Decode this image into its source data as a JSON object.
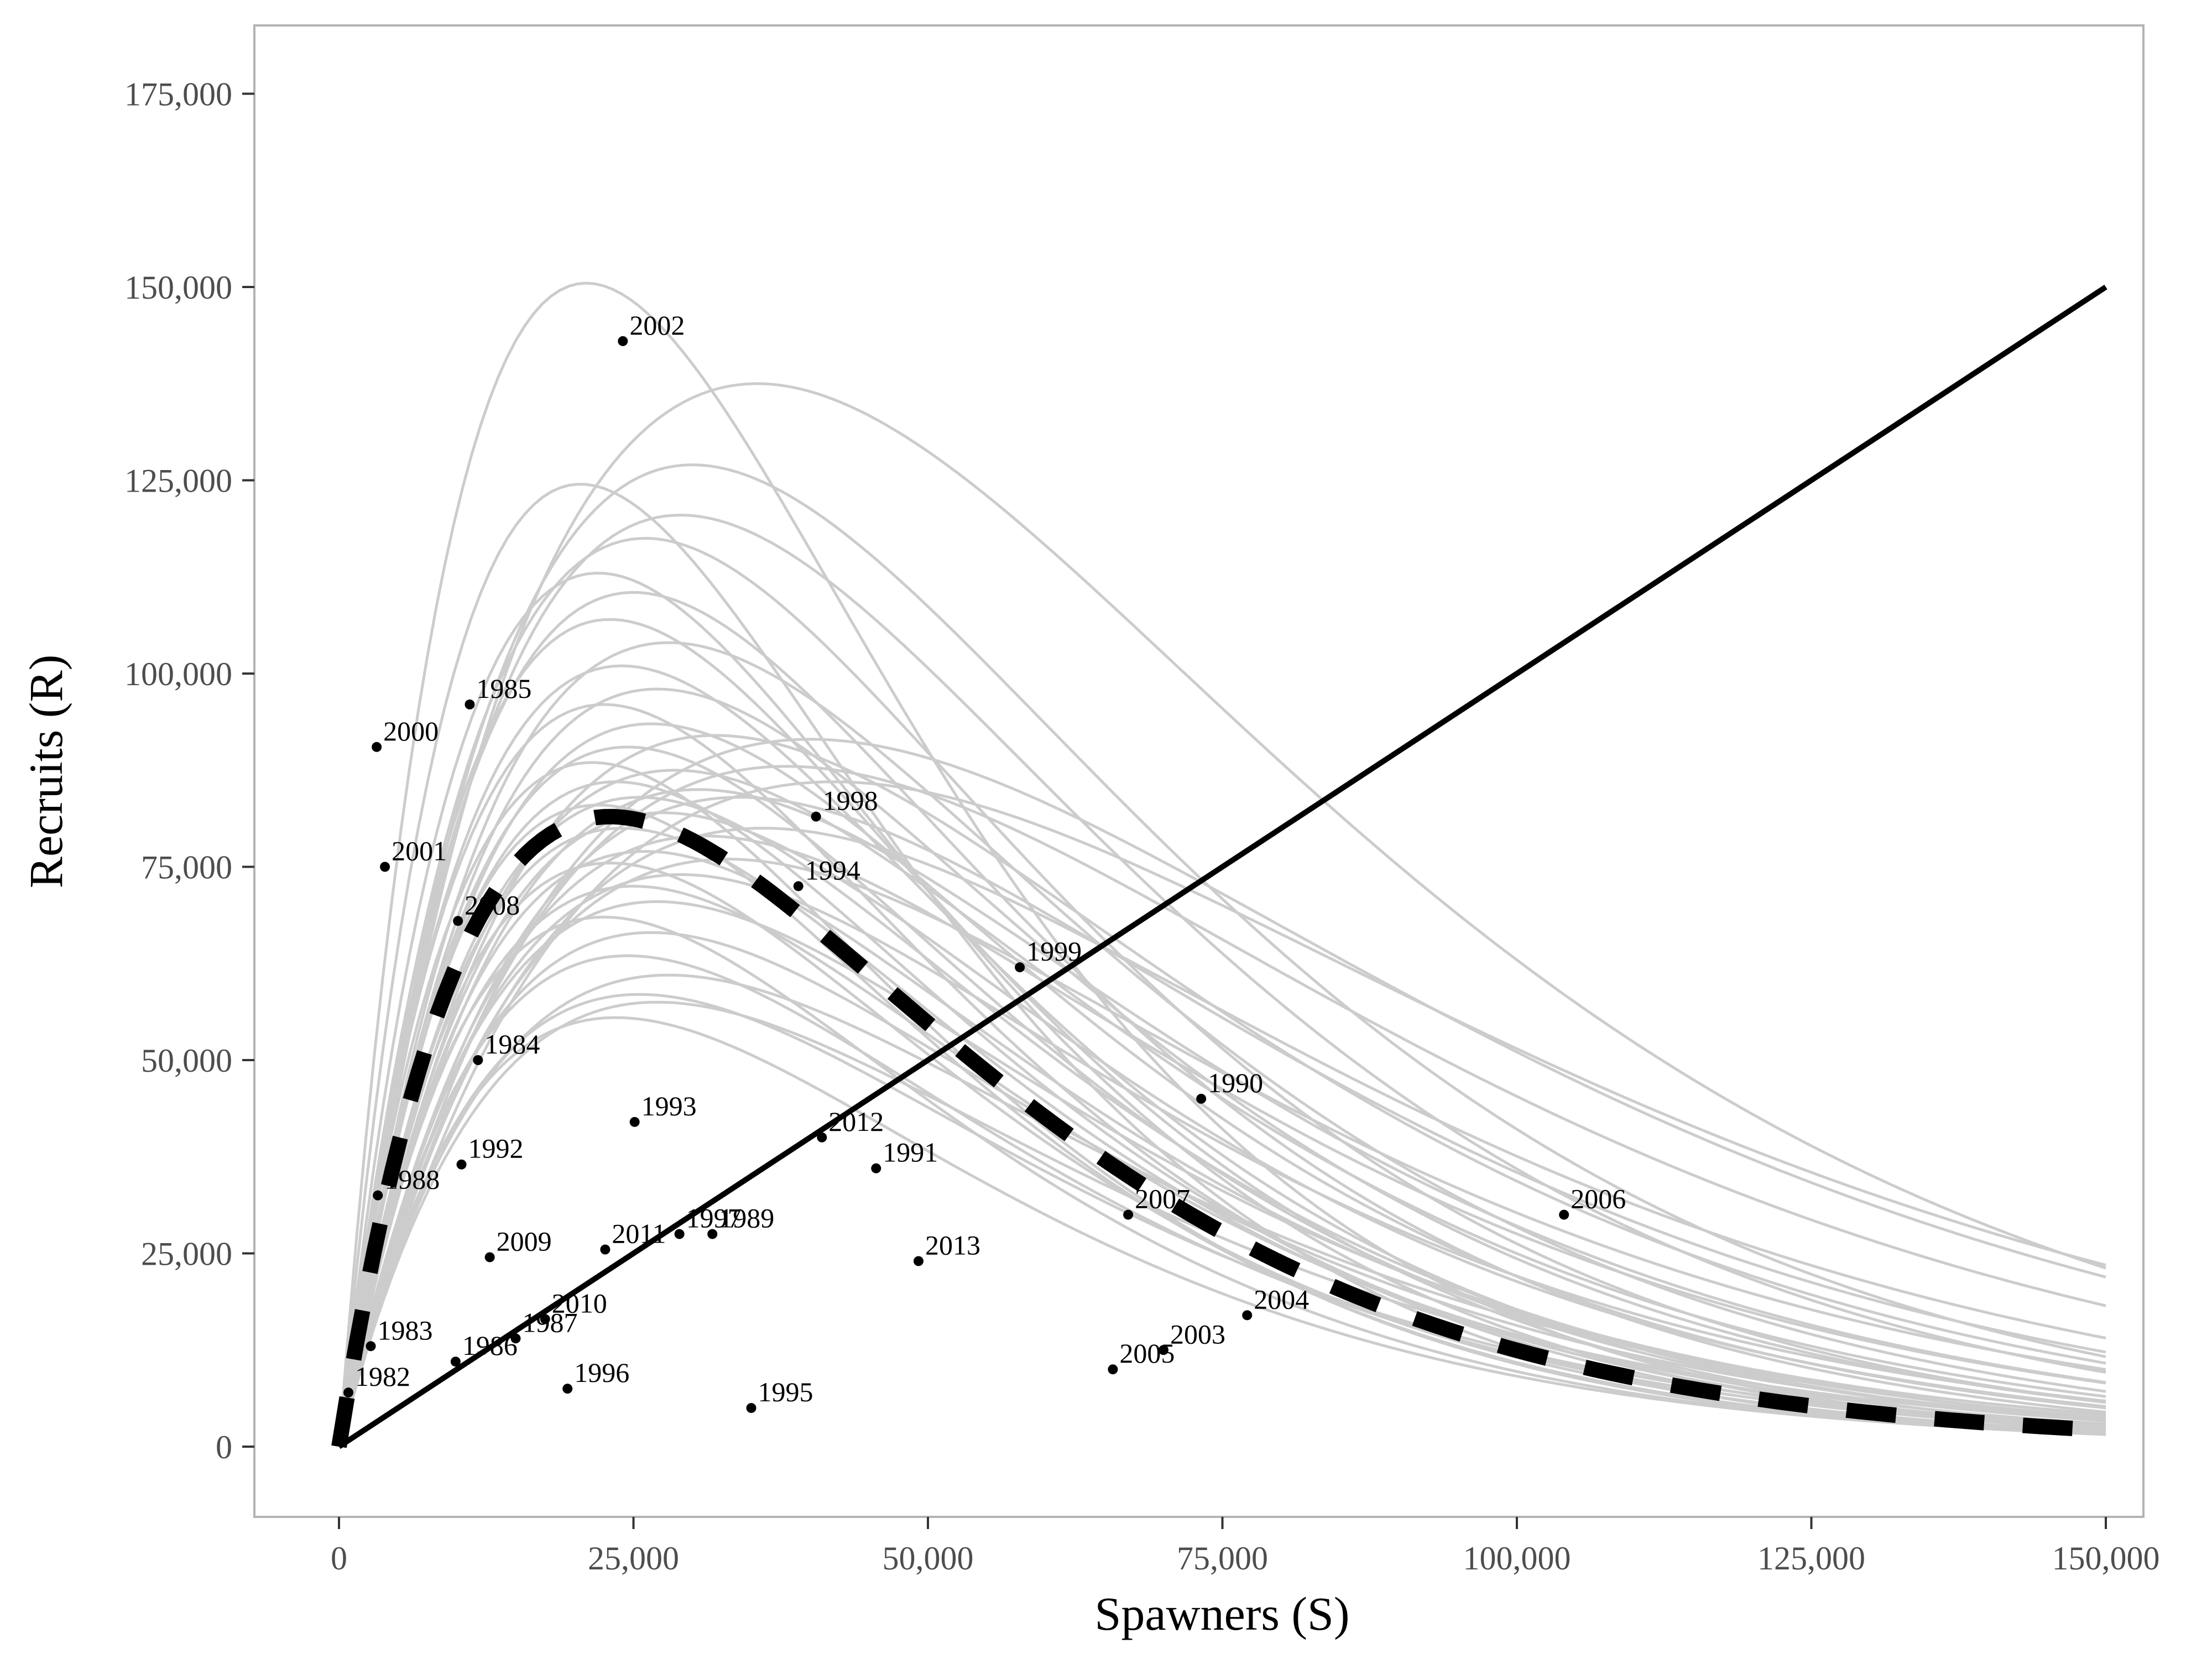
{
  "chart_data": {
    "type": "scatter",
    "xlabel": "Spawners (S)",
    "ylabel": "Recruits (R)",
    "xlim": [
      -7000,
      150000
    ],
    "ylim": [
      -8000,
      183000
    ],
    "x_ticks": [
      0,
      25000,
      50000,
      75000,
      100000,
      125000,
      150000
    ],
    "x_tick_labels": [
      "0",
      "25,000",
      "50,000",
      "75,000",
      "100,000",
      "125,000",
      "150,000"
    ],
    "y_ticks": [
      0,
      25000,
      50000,
      75000,
      100000,
      125000,
      150000,
      175000
    ],
    "y_tick_labels": [
      "0",
      "25,000",
      "50,000",
      "75,000",
      "100,000",
      "125,000",
      "150,000",
      "175,000"
    ],
    "grid": false,
    "replacement_line": {
      "x": [
        0,
        150000
      ],
      "y": [
        0,
        150000
      ]
    },
    "median_curve": {
      "model": "ricker",
      "peak_s": 23000,
      "peak_r": 81500
    },
    "posterior_curves": [
      [
        21000,
        150500
      ],
      [
        35500,
        137500
      ],
      [
        30000,
        127000
      ],
      [
        20500,
        124500
      ],
      [
        29000,
        120500
      ],
      [
        26000,
        117500
      ],
      [
        22000,
        113000
      ],
      [
        25000,
        110500
      ],
      [
        23000,
        107000
      ],
      [
        28000,
        104000
      ],
      [
        24000,
        101000
      ],
      [
        27000,
        98000
      ],
      [
        22500,
        96000
      ],
      [
        26500,
        93500
      ],
      [
        32000,
        92000
      ],
      [
        24500,
        90500
      ],
      [
        21500,
        88500
      ],
      [
        28500,
        87500
      ],
      [
        23500,
        86000
      ],
      [
        30500,
        85000
      ],
      [
        25500,
        84000
      ],
      [
        22000,
        83000
      ],
      [
        27500,
        82000
      ],
      [
        24000,
        80000
      ],
      [
        31000,
        79000
      ],
      [
        26000,
        77000
      ],
      [
        23000,
        75500
      ],
      [
        29000,
        74000
      ],
      [
        25000,
        72500
      ],
      [
        27000,
        70500
      ],
      [
        22500,
        68500
      ],
      [
        26500,
        66500
      ],
      [
        24500,
        63500
      ],
      [
        28000,
        61000
      ],
      [
        25500,
        58500
      ],
      [
        27000,
        57500
      ],
      [
        23500,
        55500
      ],
      [
        40000,
        91500
      ],
      [
        38000,
        88000
      ],
      [
        34000,
        84000
      ],
      [
        42000,
        86000
      ],
      [
        36000,
        80000
      ],
      [
        33000,
        76000
      ]
    ],
    "points": [
      {
        "year": "1982",
        "s": 800,
        "r": 7000
      },
      {
        "year": "1983",
        "s": 2700,
        "r": 13000
      },
      {
        "year": "1984",
        "s": 11800,
        "r": 50000
      },
      {
        "year": "1985",
        "s": 11100,
        "r": 96000
      },
      {
        "year": "1986",
        "s": 9900,
        "r": 11000
      },
      {
        "year": "1987",
        "s": 15000,
        "r": 14000
      },
      {
        "year": "1988",
        "s": 3300,
        "r": 32500
      },
      {
        "year": "1989",
        "s": 31700,
        "r": 27500
      },
      {
        "year": "1990",
        "s": 73200,
        "r": 45000
      },
      {
        "year": "1991",
        "s": 45600,
        "r": 36000
      },
      {
        "year": "1992",
        "s": 10400,
        "r": 36500
      },
      {
        "year": "1993",
        "s": 25100,
        "r": 42000
      },
      {
        "year": "1994",
        "s": 39000,
        "r": 72500
      },
      {
        "year": "1995",
        "s": 35000,
        "r": 5000
      },
      {
        "year": "1996",
        "s": 19400,
        "r": 7500
      },
      {
        "year": "1997",
        "s": 28900,
        "r": 27500
      },
      {
        "year": "1998",
        "s": 40500,
        "r": 81500
      },
      {
        "year": "1999",
        "s": 57800,
        "r": 62000
      },
      {
        "year": "2000",
        "s": 3200,
        "r": 90500
      },
      {
        "year": "2001",
        "s": 3900,
        "r": 75000
      },
      {
        "year": "2002",
        "s": 24100,
        "r": 143000
      },
      {
        "year": "2003",
        "s": 70000,
        "r": 12500
      },
      {
        "year": "2004",
        "s": 77100,
        "r": 17000
      },
      {
        "year": "2005",
        "s": 65700,
        "r": 10000
      },
      {
        "year": "2006",
        "s": 104000,
        "r": 30000
      },
      {
        "year": "2007",
        "s": 67000,
        "r": 30000
      },
      {
        "year": "2008",
        "s": 10100,
        "r": 68000
      },
      {
        "year": "2009",
        "s": 12800,
        "r": 24500
      },
      {
        "year": "2010",
        "s": 17500,
        "r": 16500
      },
      {
        "year": "2011",
        "s": 22600,
        "r": 25500
      },
      {
        "year": "2012",
        "s": 41000,
        "r": 40000
      },
      {
        "year": "2013",
        "s": 49200,
        "r": 24000
      }
    ]
  }
}
